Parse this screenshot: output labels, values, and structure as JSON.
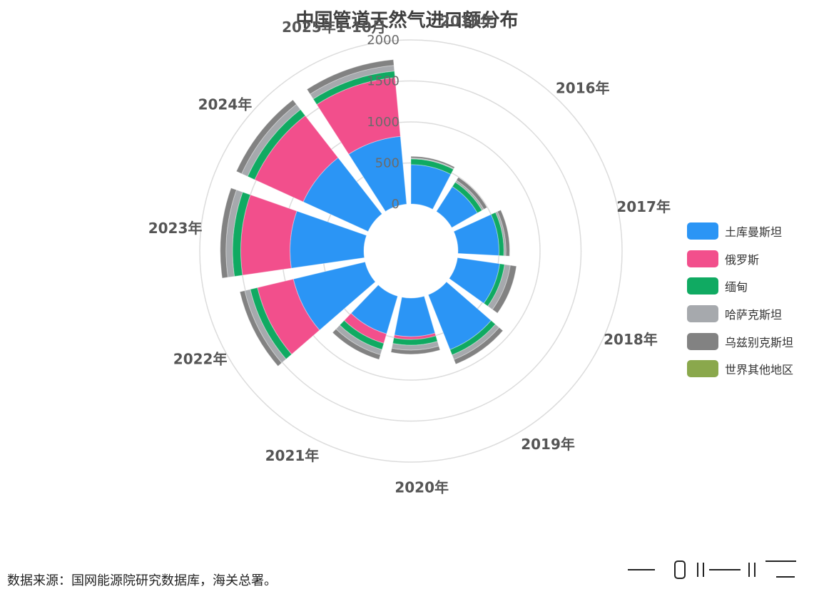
{
  "chart_data": {
    "type": "stacked polar bar",
    "title": "中国管道天然气进口额分布",
    "categories": [
      "2015年",
      "2016年",
      "2017年",
      "2018年",
      "2019年",
      "2020年",
      "2021年",
      "2022年",
      "2023年",
      "2024年",
      "2025年1-10月"
    ],
    "radial_ticks": [
      "0",
      "500",
      "1000",
      "1500",
      "2000"
    ],
    "rlim": [
      0,
      2000
    ],
    "series": [
      {
        "name": "土库曼斯坦",
        "color": "#2b95f5",
        "values": [
          480,
          360,
          500,
          520,
          720,
          470,
          480,
          900,
          900,
          870,
          830
        ]
      },
      {
        "name": "俄罗斯",
        "color": "#f24f8c",
        "values": [
          0,
          0,
          0,
          0,
          0,
          35,
          120,
          450,
          600,
          650,
          720
        ]
      },
      {
        "name": "缅甸",
        "color": "#10aa62",
        "values": [
          70,
          65,
          60,
          60,
          70,
          70,
          80,
          90,
          100,
          95,
          80
        ]
      },
      {
        "name": "哈萨克斯坦",
        "color": "#a6a9ad",
        "values": [
          10,
          25,
          25,
          70,
          60,
          60,
          65,
          70,
          80,
          80,
          70
        ]
      },
      {
        "name": "乌兹别克斯坦",
        "color": "#828282",
        "values": [
          20,
          45,
          45,
          75,
          60,
          50,
          60,
          60,
          70,
          70,
          70
        ]
      },
      {
        "name": "世界其他地区",
        "color": "#8aa84c",
        "values": [
          0,
          0,
          0,
          0,
          0,
          0,
          0,
          0,
          0,
          0,
          0
        ]
      }
    ]
  },
  "source_note": "数据来源：国网能源院研究数据库，海关总署。"
}
